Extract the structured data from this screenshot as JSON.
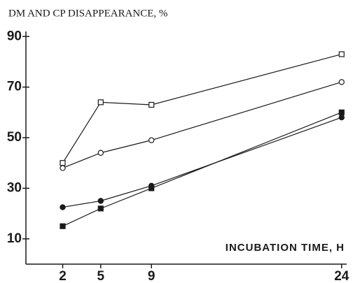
{
  "chart_data": {
    "type": "line",
    "title": "DM AND CP DISAPPEARANCE, %",
    "x_label": "INCUBATION TIME, H",
    "x": [
      2,
      5,
      9,
      24
    ],
    "xlim": [
      -0.9,
      24.4
    ],
    "xticks": [
      2,
      5,
      9,
      24
    ],
    "ylim": [
      0,
      92
    ],
    "yticks": [
      10,
      30,
      50,
      70,
      90
    ],
    "grid": false,
    "series": [
      {
        "color": "#1a1a1a",
        "marker": "square",
        "filled": false,
        "values": [
          40,
          64,
          63,
          83
        ]
      },
      {
        "color": "#1a1a1a",
        "marker": "circle",
        "filled": false,
        "values": [
          38,
          44,
          49,
          72
        ]
      },
      {
        "color": "#1a1a1a",
        "marker": "circle",
        "filled": true,
        "values": [
          22.5,
          25,
          31,
          58
        ]
      },
      {
        "color": "#1a1a1a",
        "marker": "square",
        "filled": true,
        "values": [
          15,
          22,
          30,
          60
        ]
      }
    ]
  }
}
